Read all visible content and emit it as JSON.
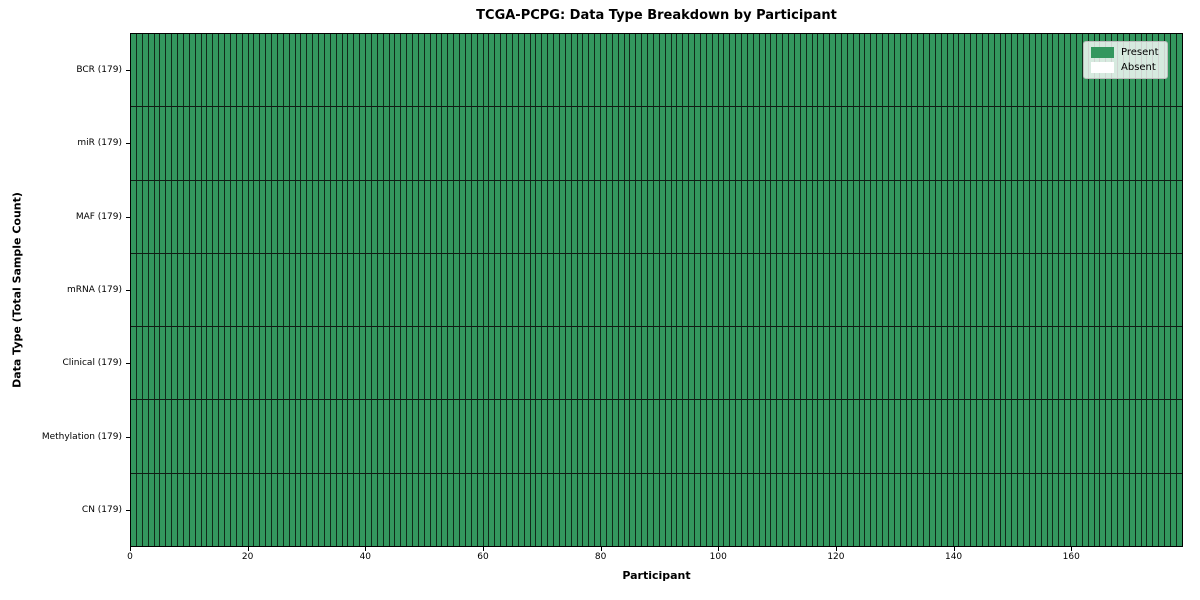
{
  "title": "TCGA-PCPG: Data Type Breakdown by Participant",
  "chart_data": {
    "type": "heatmap",
    "title": "TCGA-PCPG: Data Type Breakdown by Participant",
    "xlabel": "Participant",
    "ylabel": "Data Type (Total Sample Count)",
    "x_range": [
      0,
      179
    ],
    "x_ticks": [
      0,
      20,
      40,
      60,
      80,
      100,
      120,
      140,
      160
    ],
    "n_participants": 179,
    "grid_on": true,
    "legend_position": "upper right",
    "rows": [
      {
        "label": "BCR (179)",
        "data_type": "BCR",
        "total_samples": 179,
        "present_count": 179,
        "absent_count": 0
      },
      {
        "label": "miR (179)",
        "data_type": "miR",
        "total_samples": 179,
        "present_count": 179,
        "absent_count": 0
      },
      {
        "label": "MAF (179)",
        "data_type": "MAF",
        "total_samples": 179,
        "present_count": 179,
        "absent_count": 0
      },
      {
        "label": "mRNA (179)",
        "data_type": "mRNA",
        "total_samples": 179,
        "present_count": 179,
        "absent_count": 0
      },
      {
        "label": "Clinical (179)",
        "data_type": "Clinical",
        "total_samples": 179,
        "present_count": 179,
        "absent_count": 0
      },
      {
        "label": "Methylation (179)",
        "data_type": "Methylation",
        "total_samples": 179,
        "present_count": 179,
        "absent_count": 0
      },
      {
        "label": "CN (179)",
        "data_type": "CN",
        "total_samples": 179,
        "present_count": 179,
        "absent_count": 0
      }
    ],
    "legend": [
      {
        "label": "Present",
        "color": "#33975e"
      },
      {
        "label": "Absent",
        "color": "#ffffff"
      }
    ],
    "colors": {
      "present": "#33975e",
      "absent": "#ffffff",
      "cell_edge": "#0a160e",
      "axes_edge": "#000000"
    }
  }
}
